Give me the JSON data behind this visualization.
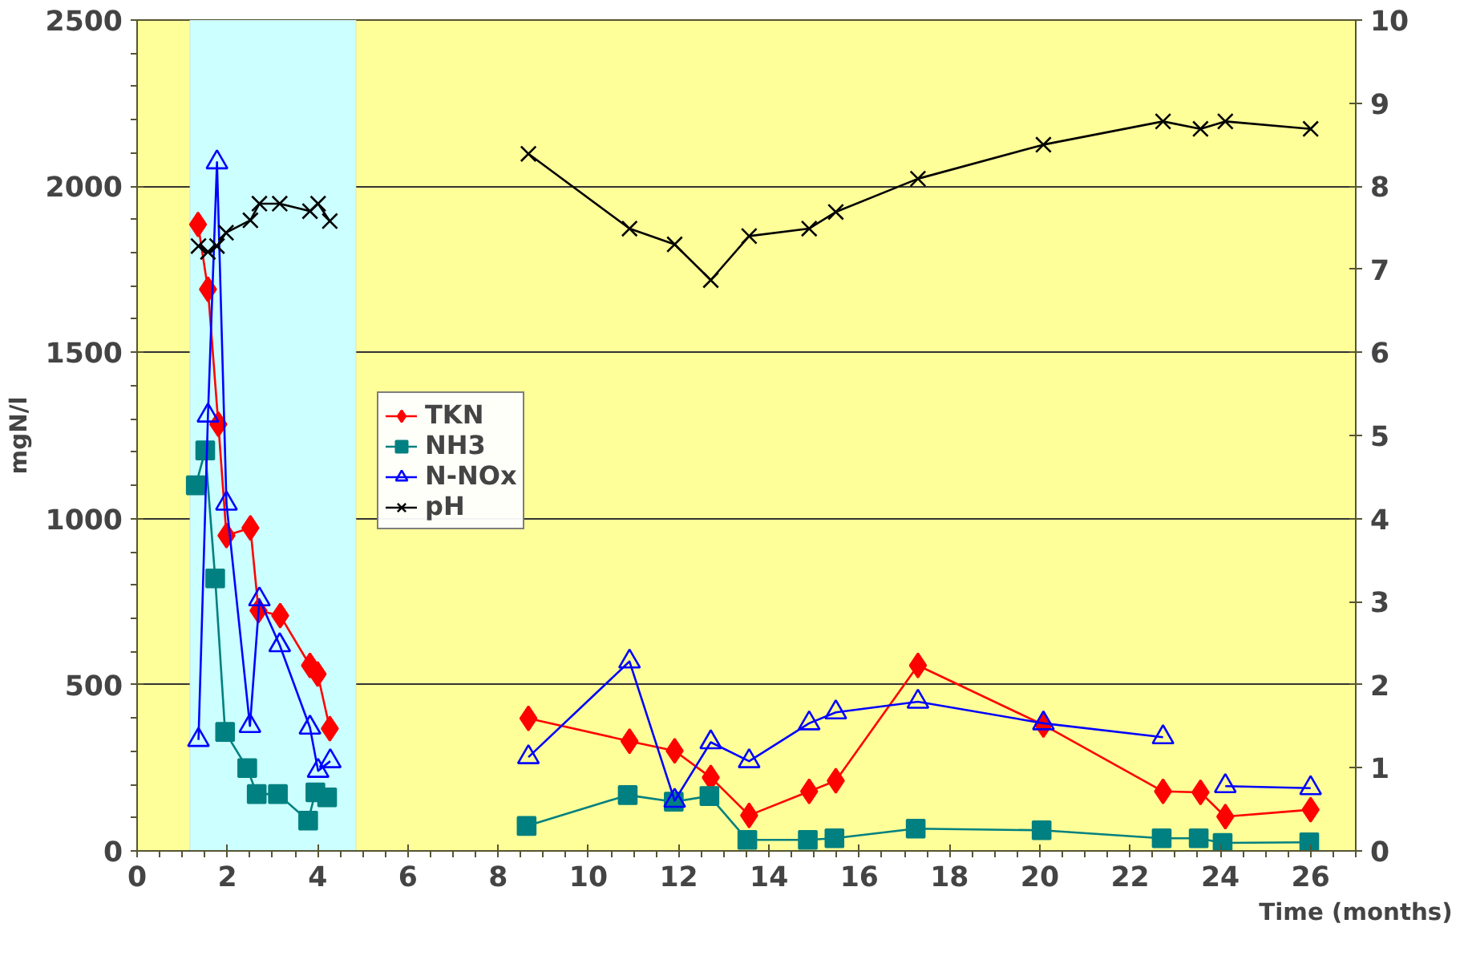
{
  "chart_data": {
    "type": "line",
    "xlabel": "Time (months)",
    "ylabel": "mgN/l",
    "xlim": [
      0,
      27
    ],
    "xticks": [
      0,
      2,
      4,
      6,
      8,
      10,
      12,
      14,
      16,
      18,
      20,
      22,
      24,
      26
    ],
    "ylim": [
      0,
      2500
    ],
    "yticks": [
      0,
      500,
      1000,
      1500,
      2000,
      2500
    ],
    "y2lim": [
      0,
      10
    ],
    "y2ticks": [
      0,
      1,
      2,
      3,
      4,
      5,
      6,
      7,
      8,
      9,
      10
    ],
    "grid": "y",
    "legend": "left",
    "bands": [
      {
        "axis": "x",
        "from": 1.17,
        "to": 4.85,
        "color": "#ccffff"
      }
    ],
    "series": [
      {
        "name": "TKN",
        "color": "#ff0000",
        "marker": "diamond",
        "x": [
          1.35,
          1.57,
          1.8,
          1.98,
          2.51,
          2.69,
          3.17,
          3.83,
          4.0,
          4.27,
          null,
          8.67,
          10.91,
          11.91,
          12.71,
          13.56,
          14.89,
          15.48,
          17.3,
          20.08,
          22.73,
          23.56,
          24.11,
          26.0
        ],
        "values": [
          1885,
          1690,
          1284,
          949,
          972,
          723,
          708,
          558,
          532,
          368,
          null,
          399,
          330,
          301,
          221,
          107,
          179,
          211,
          558,
          379,
          179,
          176,
          103,
          124
        ]
      },
      {
        "name": "NH3",
        "color": "#008080",
        "marker": "square",
        "x": [
          1.3,
          1.51,
          1.73,
          1.95,
          2.44,
          2.65,
          3.12,
          3.79,
          3.95,
          4.21,
          null,
          8.63,
          10.87,
          11.89,
          12.68,
          13.52,
          14.86,
          15.45,
          17.25,
          20.04,
          22.7,
          23.52,
          24.05,
          25.97
        ],
        "values": [
          1100,
          1205,
          820,
          358,
          249,
          171,
          171,
          91,
          176,
          161,
          null,
          75,
          168,
          148,
          165,
          33,
          33,
          38,
          67,
          62,
          38,
          38,
          24,
          26
        ]
      },
      {
        "name": "N-NOx",
        "color": "#0000ff",
        "marker": "triangle",
        "x": [
          1.36,
          1.57,
          1.77,
          1.98,
          2.5,
          2.71,
          3.16,
          3.83,
          4.01,
          4.28,
          null,
          8.67,
          10.91,
          11.91,
          12.71,
          13.56,
          14.89,
          15.48,
          17.3,
          20.08,
          22.73,
          null,
          24.11,
          26.0
        ],
        "values": [
          334,
          1310,
          2072,
          1045,
          376,
          757,
          619,
          371,
          241,
          270,
          null,
          282,
          570,
          151,
          327,
          270,
          384,
          417,
          449,
          384,
          342,
          null,
          195,
          189
        ]
      },
      {
        "name": "pH",
        "color": "#000000",
        "marker": "cross",
        "axis": "y2",
        "x": [
          1.36,
          1.57,
          1.77,
          1.97,
          2.51,
          2.71,
          3.16,
          3.83,
          4.01,
          4.27,
          null,
          8.67,
          10.91,
          11.91,
          12.71,
          13.56,
          14.89,
          15.48,
          17.3,
          20.08,
          22.73,
          23.56,
          24.11,
          26.0
        ],
        "values": [
          7.28,
          7.21,
          7.28,
          7.44,
          7.59,
          7.79,
          7.79,
          7.7,
          7.79,
          7.58,
          null,
          8.39,
          7.49,
          7.3,
          6.87,
          7.4,
          7.49,
          7.69,
          8.09,
          8.5,
          8.78,
          8.69,
          8.78,
          8.69
        ]
      }
    ]
  }
}
